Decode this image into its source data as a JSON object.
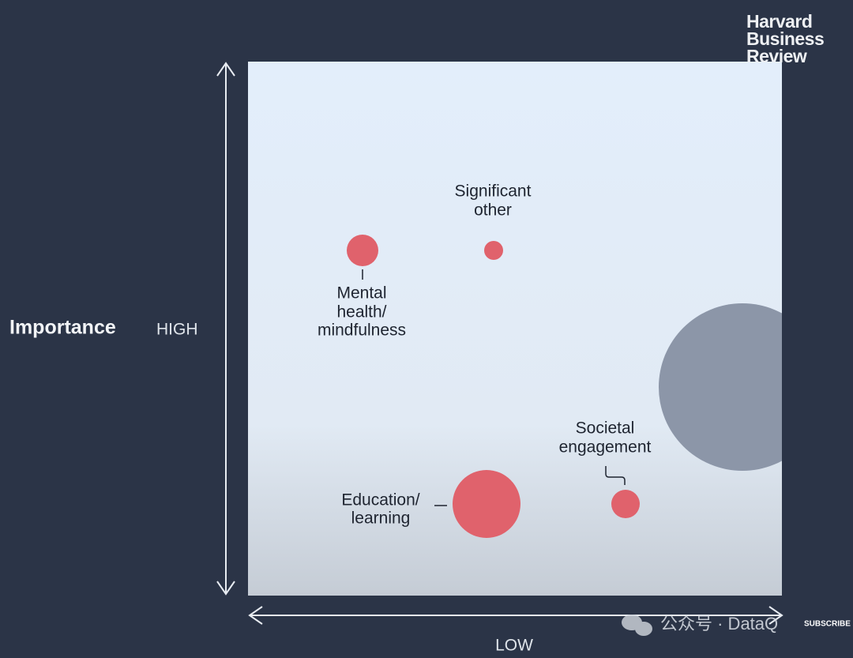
{
  "logo": [
    "Harvard",
    "Business",
    "Review"
  ],
  "axis": {
    "y_title": "Importance",
    "y_label": "HIGH",
    "x_label": "LOW"
  },
  "bubbles": [
    {
      "label": [
        "Significant",
        "other"
      ]
    },
    {
      "label": [
        "Mental",
        "health/",
        "mindfulness"
      ]
    },
    {
      "label": [
        "Education/",
        "learning"
      ]
    },
    {
      "label": [
        "Societal",
        "engagement"
      ]
    }
  ],
  "watermark": "公众号 · DataQ",
  "subscribe": "SUBSCRIBE"
}
